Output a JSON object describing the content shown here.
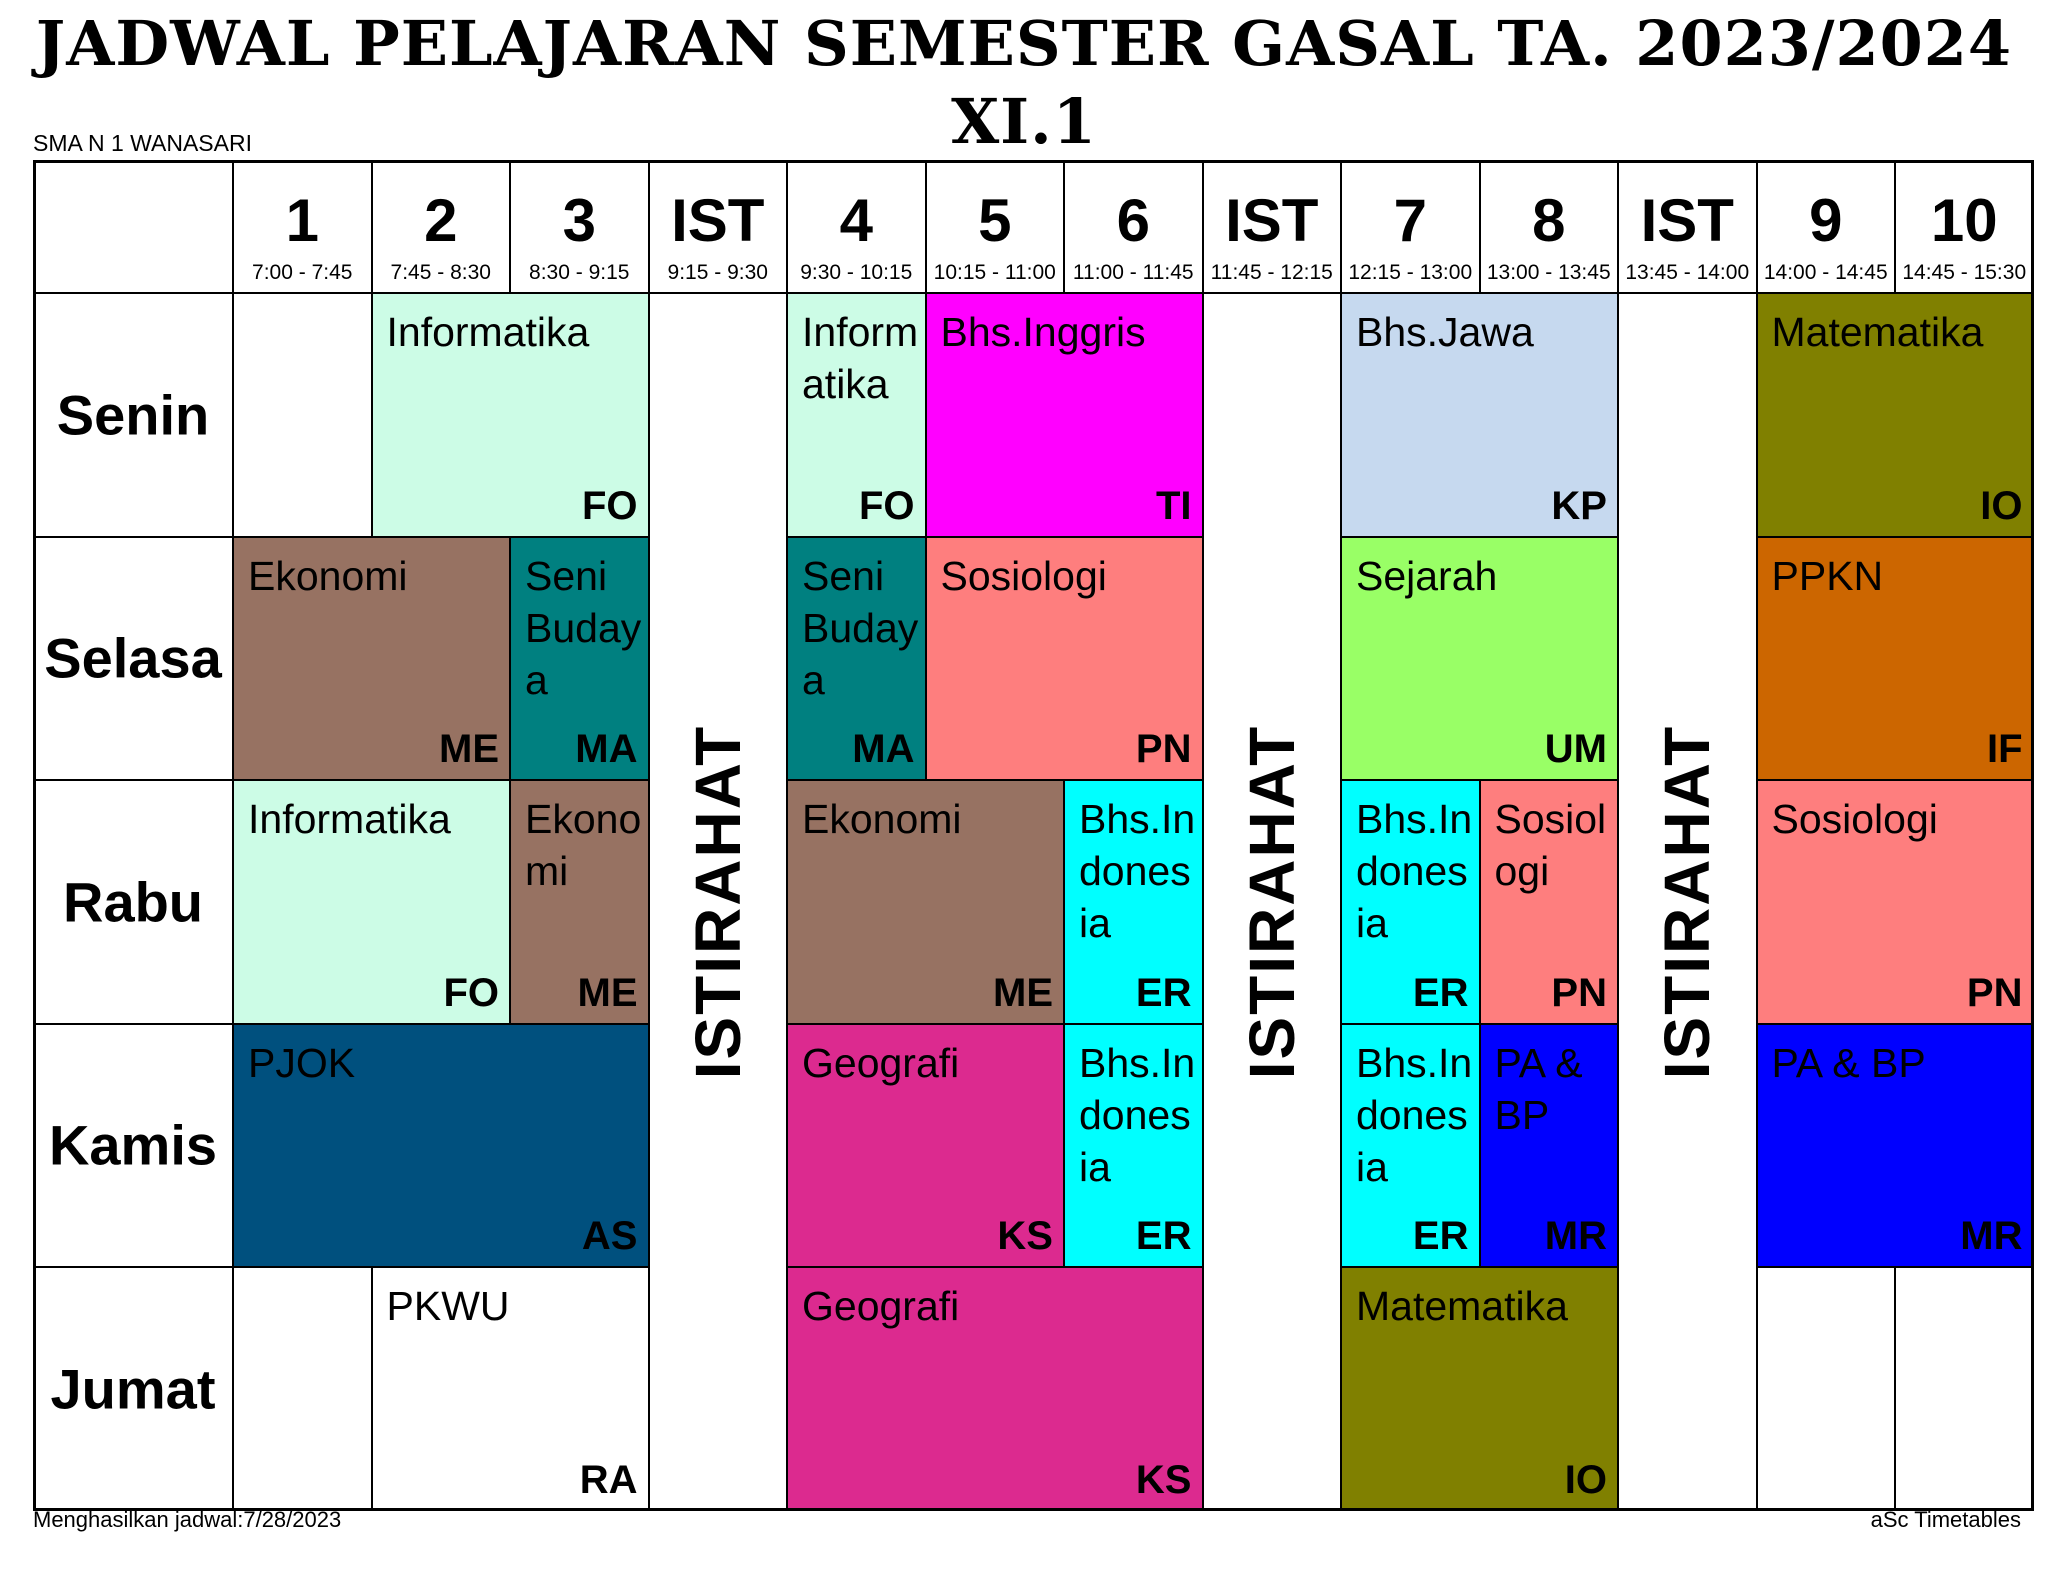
{
  "title": "JADWAL PELAJARAN SEMESTER GASAL TA. 2023/2024",
  "class_name": "XI.1",
  "school": "SMA N 1 WANASARI",
  "footer": {
    "generated": "Menghasilkan jadwal:7/28/2023",
    "software": "aSc Timetables"
  },
  "break_label": "ISTIRAHAT",
  "periods": [
    {
      "label": "1",
      "time": "7:00 - 7:45"
    },
    {
      "label": "2",
      "time": "7:45 - 8:30"
    },
    {
      "label": "3",
      "time": "8:30 - 9:15"
    },
    {
      "label": "IST",
      "time": "9:15 - 9:30"
    },
    {
      "label": "4",
      "time": "9:30 - 10:15"
    },
    {
      "label": "5",
      "time": "10:15 - 11:00"
    },
    {
      "label": "6",
      "time": "11:00 - 11:45"
    },
    {
      "label": "IST",
      "time": "11:45 - 12:15"
    },
    {
      "label": "7",
      "time": "12:15 - 13:00"
    },
    {
      "label": "8",
      "time": "13:00 - 13:45"
    },
    {
      "label": "IST",
      "time": "13:45 - 14:00"
    },
    {
      "label": "9",
      "time": "14:00 - 14:45"
    },
    {
      "label": "10",
      "time": "14:45 - 15:30"
    }
  ],
  "days": [
    "Senin",
    "Selasa",
    "Rabu",
    "Kamis",
    "Jumat"
  ],
  "lessons": [
    {
      "day": 0,
      "col": 1,
      "span": 2,
      "subject": "Informatika",
      "teacher": "FO",
      "color": "#ccfce6"
    },
    {
      "day": 0,
      "col": 4,
      "span": 1,
      "subject": "Informatika",
      "teacher": "FO",
      "color": "#ccfce6"
    },
    {
      "day": 0,
      "col": 5,
      "span": 2,
      "subject": "Bhs.Inggris",
      "teacher": "TI",
      "color": "#ff00ff"
    },
    {
      "day": 0,
      "col": 8,
      "span": 2,
      "subject": "Bhs.Jawa",
      "teacher": "KP",
      "color": "#c6d9ef"
    },
    {
      "day": 0,
      "col": 11,
      "span": 2,
      "subject": "Matematika",
      "teacher": "IO",
      "color": "#808000"
    },
    {
      "day": 1,
      "col": 0,
      "span": 2,
      "subject": "Ekonomi",
      "teacher": "ME",
      "color": "#977262"
    },
    {
      "day": 1,
      "col": 2,
      "span": 1,
      "subject": "Seni Budaya",
      "teacher": "MA",
      "color": "#008080"
    },
    {
      "day": 1,
      "col": 4,
      "span": 1,
      "subject": "Seni Budaya",
      "teacher": "MA",
      "color": "#008080"
    },
    {
      "day": 1,
      "col": 5,
      "span": 2,
      "subject": "Sosiologi",
      "teacher": "PN",
      "color": "#fe7e7e"
    },
    {
      "day": 1,
      "col": 8,
      "span": 2,
      "subject": "Sejarah",
      "teacher": "UM",
      "color": "#99ff66"
    },
    {
      "day": 1,
      "col": 11,
      "span": 2,
      "subject": "PPKN",
      "teacher": "IF",
      "color": "#cc6600"
    },
    {
      "day": 2,
      "col": 0,
      "span": 2,
      "subject": "Informatika",
      "teacher": "FO",
      "color": "#ccfce6"
    },
    {
      "day": 2,
      "col": 2,
      "span": 1,
      "subject": "Ekonomi",
      "teacher": "ME",
      "color": "#977262"
    },
    {
      "day": 2,
      "col": 4,
      "span": 2,
      "subject": "Ekonomi",
      "teacher": "ME",
      "color": "#977262"
    },
    {
      "day": 2,
      "col": 6,
      "span": 1,
      "subject": "Bhs.Indonesia",
      "teacher": "ER",
      "color": "#00ffff"
    },
    {
      "day": 2,
      "col": 8,
      "span": 1,
      "subject": "Bhs.Indonesia",
      "teacher": "ER",
      "color": "#00ffff"
    },
    {
      "day": 2,
      "col": 9,
      "span": 1,
      "subject": "Sosiologi",
      "teacher": "PN",
      "color": "#fe7e7e"
    },
    {
      "day": 2,
      "col": 11,
      "span": 2,
      "subject": "Sosiologi",
      "teacher": "PN",
      "color": "#fe7e7e"
    },
    {
      "day": 3,
      "col": 0,
      "span": 3,
      "subject": "PJOK",
      "teacher": "AS",
      "color": "#00507e"
    },
    {
      "day": 3,
      "col": 4,
      "span": 2,
      "subject": "Geografi",
      "teacher": "KS",
      "color": "#dc2a8f"
    },
    {
      "day": 3,
      "col": 6,
      "span": 1,
      "subject": "Bhs.Indonesia",
      "teacher": "ER",
      "color": "#00ffff"
    },
    {
      "day": 3,
      "col": 8,
      "span": 1,
      "subject": "Bhs.Indonesia",
      "teacher": "ER",
      "color": "#00ffff"
    },
    {
      "day": 3,
      "col": 9,
      "span": 1,
      "subject": "PA & BP",
      "teacher": "MR",
      "color": "#0000ff"
    },
    {
      "day": 3,
      "col": 11,
      "span": 2,
      "subject": "PA & BP",
      "teacher": "MR",
      "color": "#0000ff"
    },
    {
      "day": 4,
      "col": 1,
      "span": 2,
      "subject": "PKWU",
      "teacher": "RA",
      "color": "#ffffff"
    },
    {
      "day": 4,
      "col": 4,
      "span": 3,
      "subject": "Geografi",
      "teacher": "KS",
      "color": "#dc2a8f"
    },
    {
      "day": 4,
      "col": 8,
      "span": 2,
      "subject": "Matematika",
      "teacher": "IO",
      "color": "#808000"
    }
  ]
}
